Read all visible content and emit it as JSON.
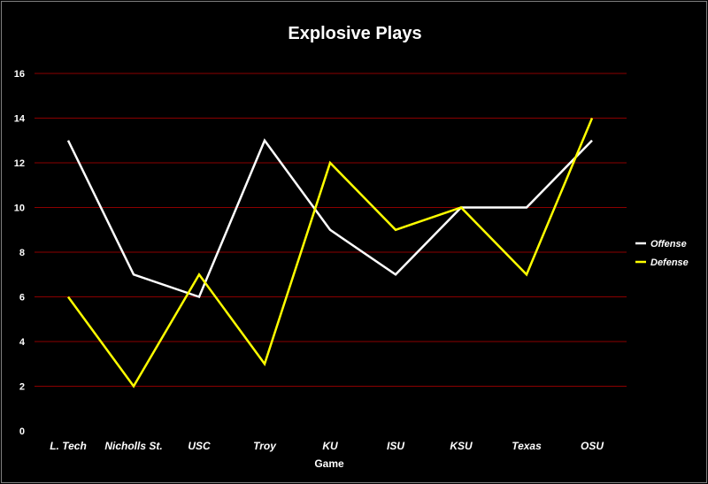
{
  "chart_data": {
    "type": "line",
    "title": "Explosive Plays",
    "xlabel": "Game",
    "ylabel": "",
    "categories": [
      "L. Tech",
      "Nicholls St.",
      "USC",
      "Troy",
      "KU",
      "ISU",
      "KSU",
      "Texas",
      "OSU"
    ],
    "series": [
      {
        "name": "Offense",
        "color": "#ffffff",
        "values": [
          13,
          7,
          6,
          13,
          9,
          7,
          10,
          10,
          13
        ]
      },
      {
        "name": "Defense",
        "color": "#ffff00",
        "values": [
          6,
          2,
          7,
          3,
          12,
          9,
          10,
          7,
          14
        ]
      }
    ],
    "ylim": [
      0,
      16
    ],
    "yticks": [
      0,
      2,
      4,
      6,
      8,
      10,
      12,
      14,
      16
    ],
    "grid": true,
    "grid_color": "#8b0000",
    "background": "#000000",
    "legend_position": "right"
  }
}
